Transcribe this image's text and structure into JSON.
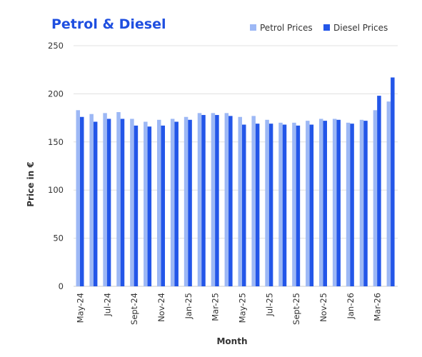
{
  "chart_data": {
    "type": "bar",
    "title": "Petrol & Diesel",
    "xlabel": "Month",
    "ylabel": "Price in €",
    "ylim": [
      0,
      250
    ],
    "yticks": [
      "0",
      "50",
      "100",
      "150",
      "200",
      "250"
    ],
    "grid": true,
    "legend_position": "top-right",
    "categories": [
      "May-24",
      "Jun-24",
      "Jul-24",
      "Aug-24",
      "Sept-24",
      "Oct-24",
      "Nov-24",
      "Dec-24",
      "Jan-25",
      "Feb-25",
      "Mar-25",
      "Apr-25",
      "May-25",
      "Jun-25",
      "Jul-25",
      "Aug-25",
      "Sept-25",
      "Oct-25",
      "Nov-25",
      "Dec-25",
      "Jan-26",
      "Feb-26",
      "Mar-26",
      "Apr-26"
    ],
    "xtick_labels": [
      "May-24",
      "Jul-24",
      "Sept-24",
      "Nov-24",
      "Jan-25",
      "Mar-25",
      "May-25",
      "Jul-25",
      "Sept-25",
      "Nov-25",
      "Jan-26",
      "Mar-26"
    ],
    "series": [
      {
        "name": "Petrol Prices",
        "color": "#9db8f5",
        "values": [
          183,
          179,
          180,
          181,
          174,
          171,
          173,
          174,
          176,
          180,
          180,
          180,
          176,
          177,
          173,
          170,
          170,
          172,
          174,
          174,
          170,
          173,
          183,
          192
        ]
      },
      {
        "name": "Diesel Prices",
        "color": "#2356e8",
        "values": [
          176,
          171,
          174,
          174,
          167,
          166,
          167,
          171,
          173,
          178,
          178,
          177,
          168,
          169,
          169,
          168,
          167,
          168,
          172,
          173,
          169,
          172,
          198,
          217
        ]
      }
    ],
    "title_color": "#1f4fe0",
    "text_color": "#333333",
    "grid_color": "#e0e0e0"
  }
}
